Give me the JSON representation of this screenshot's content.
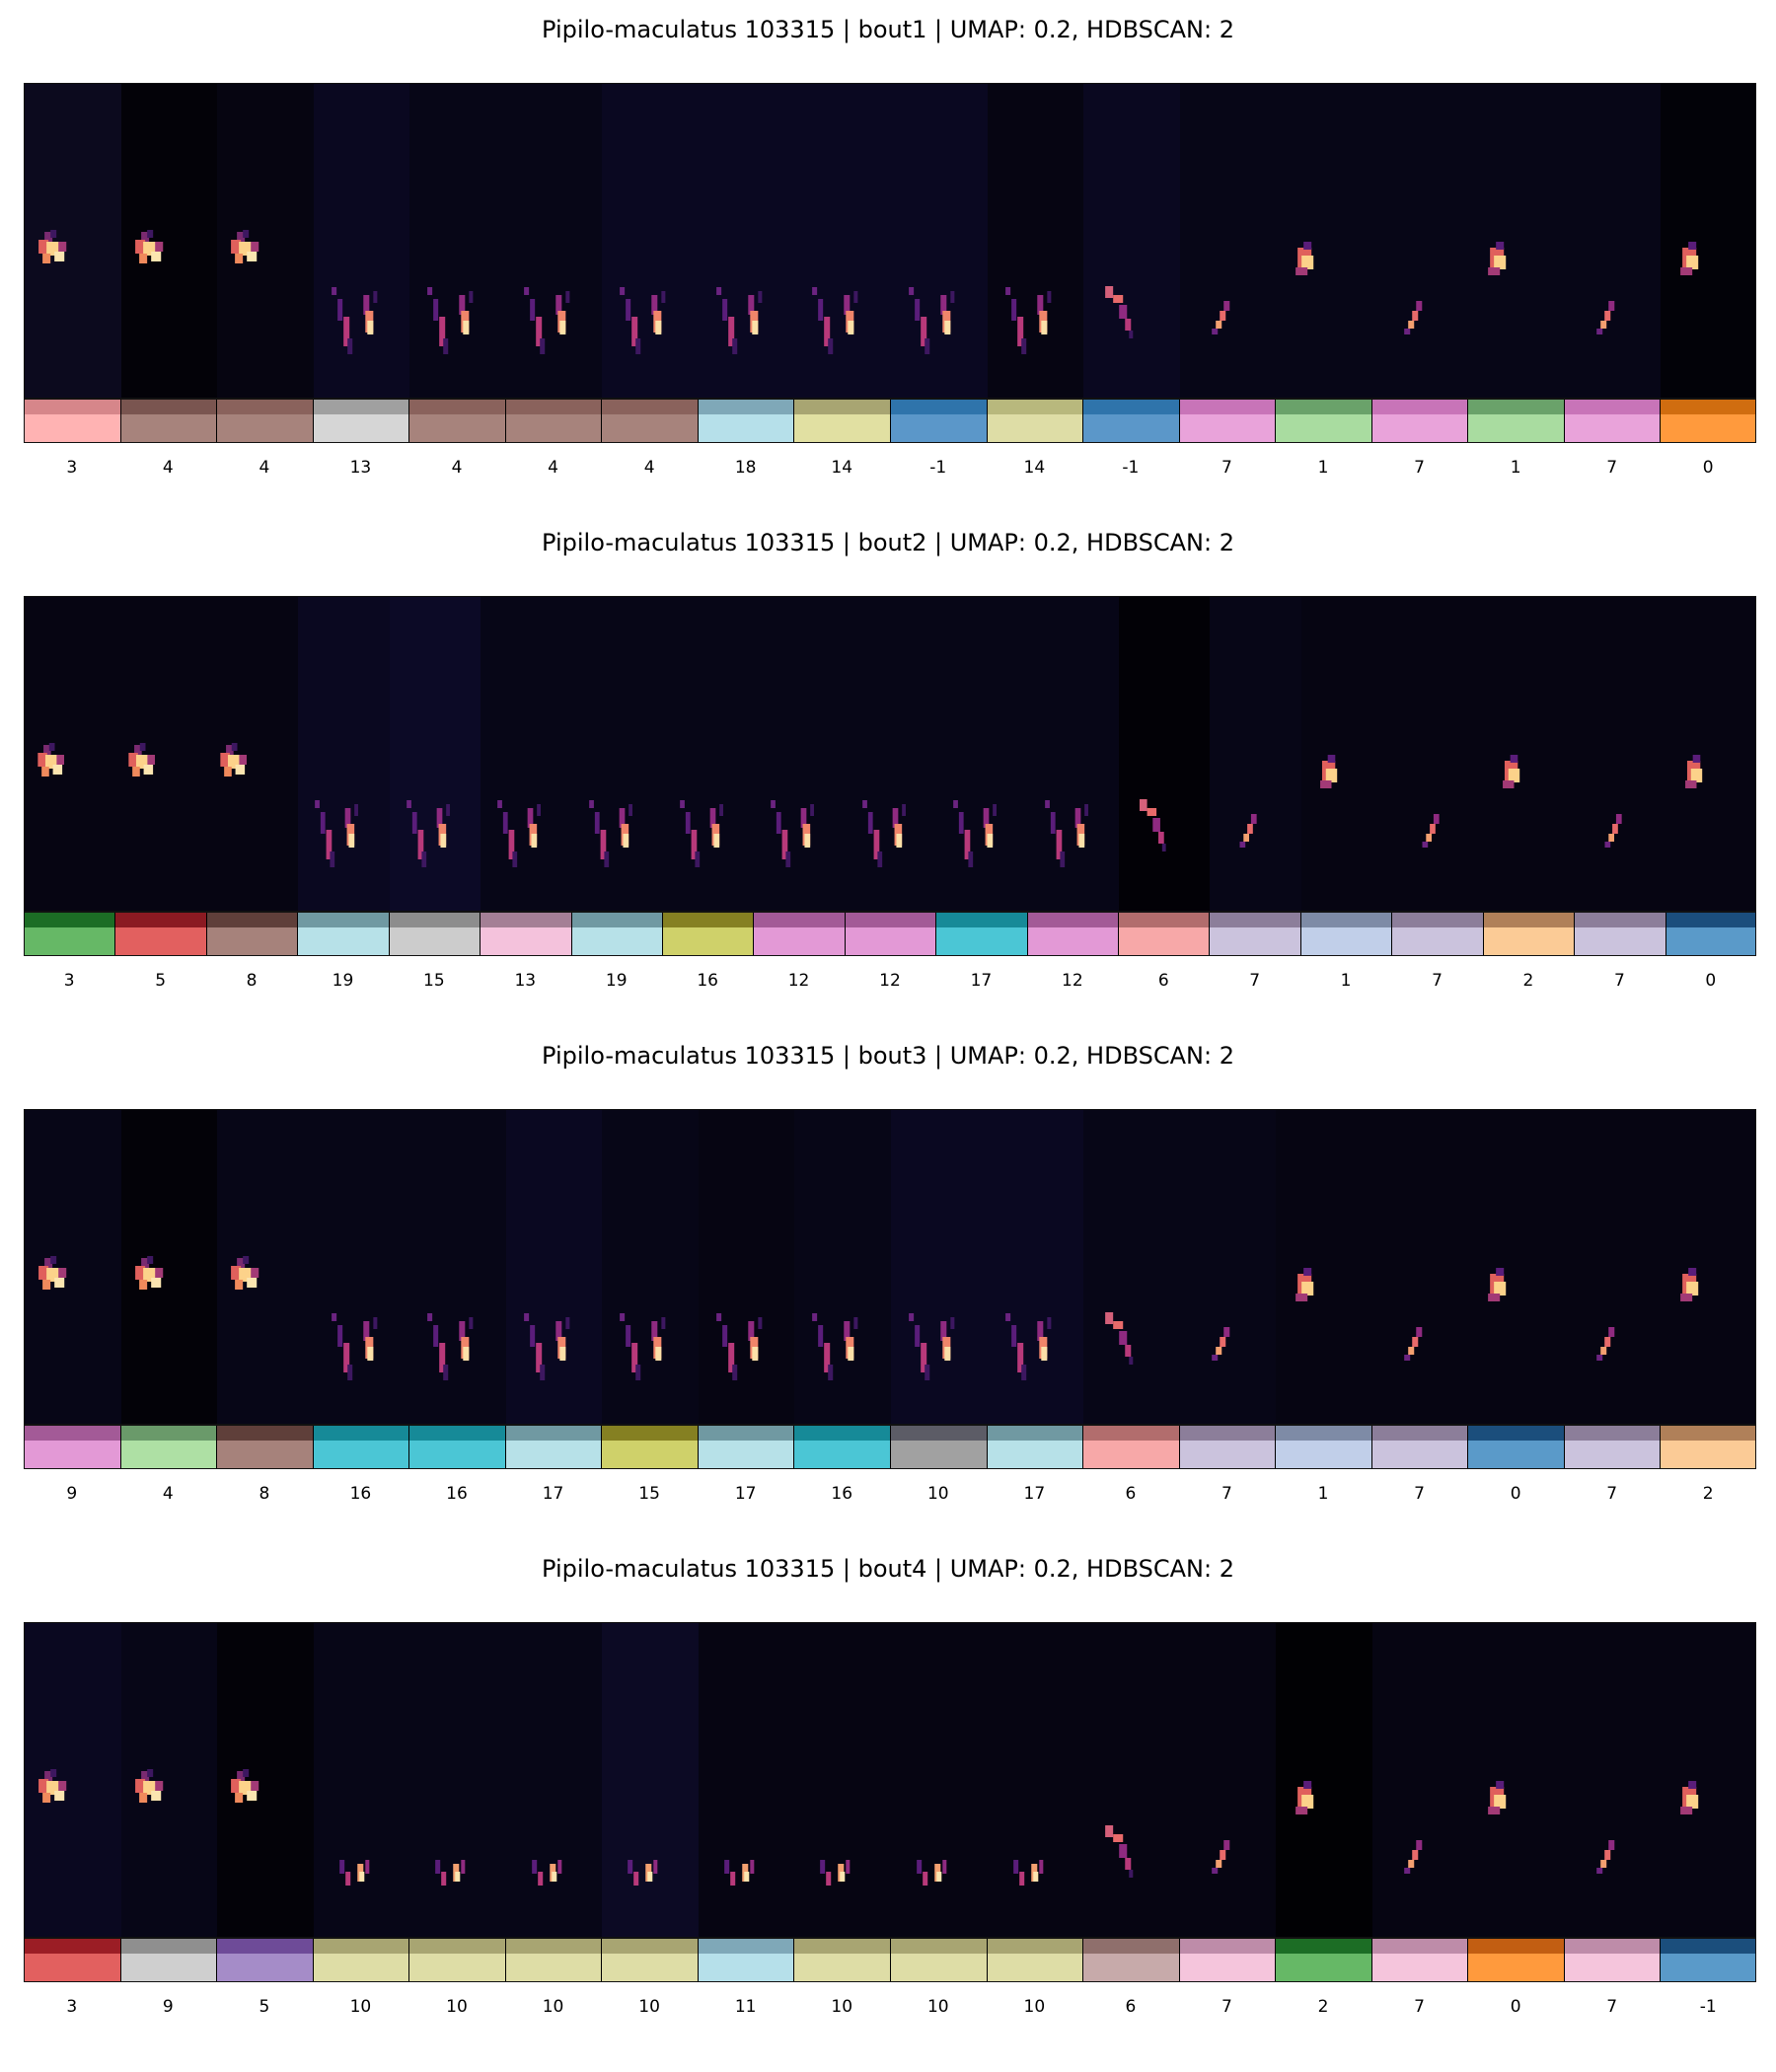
{
  "panels": [
    {
      "title": "Pipilo-maculatus 103315 | bout1 | UMAP: 0.2, HDBSCAN: 2",
      "labels": [
        "3",
        "4",
        "4",
        "13",
        "4",
        "4",
        "4",
        "18",
        "14",
        "-1",
        "14",
        "-1",
        "7",
        "1",
        "7",
        "1",
        "7",
        "0"
      ],
      "bar_top": [
        "#d6868a",
        "#7a5550",
        "#8a625c",
        "#a0a0a0",
        "#8a625c",
        "#8a625c",
        "#8a625c",
        "#7fa8b8",
        "#a8a572",
        "#2f74ab",
        "#b8b87d",
        "#2f74ab",
        "#c874b8",
        "#6aa26a",
        "#c874b8",
        "#6aa26a",
        "#c874b8",
        "#d06d10"
      ],
      "bar_bot": [
        "#ffb3b3",
        "#a7837c",
        "#a7837c",
        "#d6d6d6",
        "#a7837c",
        "#a7837c",
        "#a7837c",
        "#b6e0ea",
        "#e1e0a2",
        "#5b97c9",
        "#dedda6",
        "#5b97c9",
        "#e9a3da",
        "#a9dca0",
        "#e9a3da",
        "#a9dca0",
        "#e9a3da",
        "#ff9a3d"
      ],
      "bg": [
        "#0c0a1e",
        "#030208",
        "#060511",
        "#0a0820",
        "#070617",
        "#070617",
        "#0a0821",
        "#0a0821",
        "#0a0821",
        "#0a0821",
        "#060512",
        "#0a0820",
        "#070617",
        "#070617",
        "#070617",
        "#070617",
        "#070617",
        "#020208"
      ],
      "shape": [
        "A",
        "A",
        "A",
        "B",
        "B",
        "B",
        "B",
        "B",
        "B",
        "B",
        "B",
        "C",
        "D",
        "E",
        "D",
        "E",
        "D",
        "E"
      ]
    },
    {
      "title": "Pipilo-maculatus 103315 | bout2 | UMAP: 0.2, HDBSCAN: 2",
      "labels": [
        "3",
        "5",
        "8",
        "19",
        "15",
        "13",
        "19",
        "16",
        "12",
        "12",
        "17",
        "12",
        "6",
        "7",
        "1",
        "7",
        "2",
        "7",
        "0"
      ],
      "bar_top": [
        "#1c6d25",
        "#8b1a22",
        "#5f3f3a",
        "#7099a2",
        "#8d8d8d",
        "#a47f95",
        "#7099a2",
        "#858022",
        "#a35a97",
        "#a35a97",
        "#168a98",
        "#a35a97",
        "#b26d6d",
        "#8c7e9a",
        "#7e8ba6",
        "#8c7e9a",
        "#b08059",
        "#8c7e9a",
        "#1b4e7c"
      ],
      "bar_bot": [
        "#66b866",
        "#e2605f",
        "#a6827b",
        "#b7e1e8",
        "#cccccc",
        "#f4c2dc",
        "#b7e1e8",
        "#cfd16a",
        "#e399d6",
        "#e399d6",
        "#4bc6d5",
        "#e399d6",
        "#f7a8a8",
        "#cbc3dd",
        "#c1cfe9",
        "#cbc3dd",
        "#fbcb96",
        "#cbc3dd",
        "#5a9ac9"
      ],
      "bg": [
        "#060512",
        "#060512",
        "#060512",
        "#0a0820",
        "#0c0a26",
        "#070617",
        "#070617",
        "#070617",
        "#070617",
        "#070617",
        "#070617",
        "#070617",
        "#020106",
        "#070617",
        "#060512",
        "#060512",
        "#060512",
        "#060512",
        "#060512"
      ],
      "shape": [
        "A",
        "A",
        "A",
        "B",
        "B",
        "B",
        "B",
        "B",
        "B",
        "B",
        "B",
        "B",
        "C",
        "D",
        "E",
        "D",
        "E",
        "D",
        "E"
      ]
    },
    {
      "title": "Pipilo-maculatus 103315 | bout3 | UMAP: 0.2, HDBSCAN: 2",
      "labels": [
        "9",
        "4",
        "8",
        "16",
        "16",
        "17",
        "15",
        "17",
        "16",
        "10",
        "17",
        "6",
        "7",
        "1",
        "7",
        "0",
        "7",
        "2"
      ],
      "bar_top": [
        "#a35a97",
        "#6a9a6a",
        "#5f3f3a",
        "#168a98",
        "#168a98",
        "#7099a2",
        "#858022",
        "#7099a2",
        "#168a98",
        "#5c5c66",
        "#7099a2",
        "#b26d6d",
        "#8c7e9a",
        "#7e8ba6",
        "#8c7e9a",
        "#1b4e7c",
        "#8c7e9a",
        "#b08059"
      ],
      "bar_bot": [
        "#e399d6",
        "#aee0a4",
        "#a6827b",
        "#4bc6d5",
        "#4bc6d5",
        "#b7e1e8",
        "#cfd16a",
        "#b7e1e8",
        "#4bc6d5",
        "#a1a1a1",
        "#b7e1e8",
        "#f7a8a8",
        "#cbc3dd",
        "#c1cfe9",
        "#cbc3dd",
        "#5a9ac9",
        "#cbc3dd",
        "#fbcb96"
      ],
      "bg": [
        "#070617",
        "#030208",
        "#070617",
        "#070617",
        "#070617",
        "#0a0821",
        "#070617",
        "#060512",
        "#070617",
        "#0a0821",
        "#0a0821",
        "#070617",
        "#070617",
        "#060512",
        "#060512",
        "#060512",
        "#060512",
        "#060512"
      ],
      "shape": [
        "A",
        "A",
        "A",
        "B",
        "B",
        "B",
        "B",
        "B",
        "B",
        "B",
        "B",
        "C",
        "D",
        "E",
        "D",
        "E",
        "D",
        "E"
      ]
    },
    {
      "title": "Pipilo-maculatus 103315 | bout4 | UMAP: 0.2, HDBSCAN: 2",
      "labels": [
        "3",
        "9",
        "5",
        "10",
        "10",
        "10",
        "10",
        "11",
        "10",
        "10",
        "10",
        "6",
        "7",
        "2",
        "7",
        "0",
        "7",
        "-1"
      ],
      "bar_top": [
        "#9b1d25",
        "#8f8f8f",
        "#6e4b98",
        "#a8a572",
        "#a8a572",
        "#a8a572",
        "#a8a572",
        "#7fa8b8",
        "#a8a572",
        "#a8a572",
        "#a8a572",
        "#8f6f6c",
        "#be8ca9",
        "#1c6d25",
        "#be8ca9",
        "#c25e12",
        "#be8ca9",
        "#1b4e7c"
      ],
      "bar_bot": [
        "#e2605f",
        "#cfcfcf",
        "#a58cc8",
        "#dedda6",
        "#dedda6",
        "#dedda6",
        "#dedda6",
        "#b6e0ea",
        "#dedda6",
        "#dedda6",
        "#dedda6",
        "#c7aaaa",
        "#f5c5dc",
        "#66b866",
        "#f5c5dc",
        "#ff9a3d",
        "#f5c5dc",
        "#5a9ac9"
      ],
      "bg": [
        "#0a0820",
        "#070617",
        "#030208",
        "#070617",
        "#070617",
        "#070617",
        "#0c0a24",
        "#060512",
        "#060512",
        "#060512",
        "#060512",
        "#060512",
        "#060512",
        "#010104",
        "#060512",
        "#060512",
        "#060512",
        "#060512"
      ],
      "shape": [
        "A",
        "A",
        "A",
        "F",
        "F",
        "F",
        "F",
        "F",
        "F",
        "F",
        "F",
        "C",
        "D",
        "E",
        "D",
        "E",
        "D",
        "E"
      ]
    }
  ]
}
